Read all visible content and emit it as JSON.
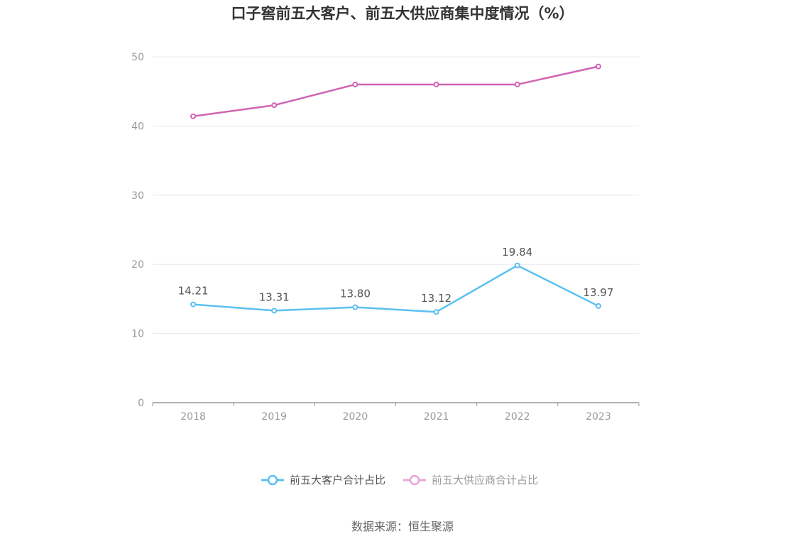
{
  "chart_data": {
    "type": "line",
    "title": "口子窖前五大客户、前五大供应商集中度情况（%）",
    "x": [
      "2018",
      "2019",
      "2020",
      "2021",
      "2022",
      "2023"
    ],
    "ylim": [
      0,
      50
    ],
    "yticks": [
      0,
      10,
      20,
      30,
      40,
      50
    ],
    "grid": true,
    "legend_position": "bottom-center",
    "series": [
      {
        "name": "前五大客户合计占比",
        "values": [
          14.21,
          13.31,
          13.8,
          13.12,
          19.84,
          13.97
        ],
        "labels": [
          "14.21",
          "13.31",
          "13.80",
          "13.12",
          "19.84",
          "13.97"
        ],
        "color": "#5bc0f0",
        "show_labels": true
      },
      {
        "name": "前五大供应商合计占比",
        "values": [
          41.4,
          43.0,
          46.0,
          46.0,
          46.0,
          48.6
        ],
        "color": "#d064b4",
        "legend_color": "#e8a6d6",
        "show_labels": false
      }
    ]
  },
  "source": "数据来源：恒生聚源"
}
